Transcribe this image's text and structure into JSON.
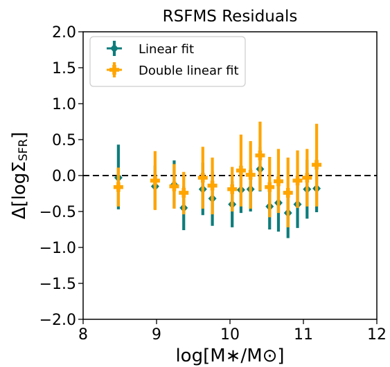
{
  "chart_data": {
    "type": "scatter",
    "title": "RSFMS Residuals",
    "xlabel": "log[M∗/M⊙]",
    "ylabel": "Δ[logΣSFR]",
    "xlim": [
      8,
      12
    ],
    "ylim": [
      -2.0,
      2.0
    ],
    "xticks": [
      "8",
      "9",
      "10",
      "11",
      "12"
    ],
    "yticks": [
      "2.0",
      "1.5",
      "1.0",
      "0.5",
      "0.0",
      "−0.5",
      "−1.0",
      "−1.5",
      "−2.0"
    ],
    "reference_line": {
      "y": 0.0,
      "style": "dashed",
      "color": "#000000"
    },
    "legend_position": "upper-left",
    "grid": false,
    "series": [
      {
        "name": "Linear fit",
        "color": "#0e7c7b",
        "marker": "diamond",
        "points": [
          {
            "x": 8.48,
            "y": -0.03,
            "lo": -0.47,
            "hi": 0.43
          },
          {
            "x": 8.98,
            "y": -0.15,
            "lo": -0.47,
            "hi": 0.14
          },
          {
            "x": 9.24,
            "y": -0.13,
            "lo": -0.45,
            "hi": 0.21
          },
          {
            "x": 9.37,
            "y": -0.45,
            "lo": -0.76,
            "hi": -0.15
          },
          {
            "x": 9.63,
            "y": -0.19,
            "lo": -0.55,
            "hi": 0.18
          },
          {
            "x": 9.76,
            "y": -0.32,
            "lo": -0.7,
            "hi": 0.06
          },
          {
            "x": 10.03,
            "y": -0.4,
            "lo": -0.72,
            "hi": -0.08
          },
          {
            "x": 10.15,
            "y": -0.2,
            "lo": -0.52,
            "hi": 0.12
          },
          {
            "x": 10.28,
            "y": -0.19,
            "lo": -0.5,
            "hi": 0.1
          },
          {
            "x": 10.41,
            "y": 0.09,
            "lo": -0.22,
            "hi": 0.4
          },
          {
            "x": 10.54,
            "y": -0.43,
            "lo": -0.75,
            "hi": -0.12
          },
          {
            "x": 10.66,
            "y": -0.38,
            "lo": -0.78,
            "hi": 0.02
          },
          {
            "x": 10.79,
            "y": -0.52,
            "lo": -0.87,
            "hi": -0.18
          },
          {
            "x": 10.92,
            "y": -0.4,
            "lo": -0.73,
            "hi": -0.06
          },
          {
            "x": 11.05,
            "y": -0.19,
            "lo": -0.6,
            "hi": 0.22
          },
          {
            "x": 11.18,
            "y": -0.18,
            "lo": -0.51,
            "hi": 0.15
          }
        ]
      },
      {
        "name": "Double linear fit",
        "color": "#ffa500",
        "marker": "plus",
        "points": [
          {
            "x": 8.48,
            "y": -0.16,
            "lo": -0.43,
            "hi": 0.11
          },
          {
            "x": 8.98,
            "y": -0.07,
            "lo": -0.48,
            "hi": 0.34
          },
          {
            "x": 9.24,
            "y": -0.15,
            "lo": -0.46,
            "hi": 0.16
          },
          {
            "x": 9.37,
            "y": -0.24,
            "lo": -0.54,
            "hi": 0.05
          },
          {
            "x": 9.63,
            "y": -0.03,
            "lo": -0.46,
            "hi": 0.4
          },
          {
            "x": 9.76,
            "y": -0.14,
            "lo": -0.54,
            "hi": 0.25
          },
          {
            "x": 10.03,
            "y": -0.19,
            "lo": -0.5,
            "hi": 0.12
          },
          {
            "x": 10.15,
            "y": 0.07,
            "lo": -0.43,
            "hi": 0.57
          },
          {
            "x": 10.28,
            "y": 0.01,
            "lo": -0.46,
            "hi": 0.48
          },
          {
            "x": 10.41,
            "y": 0.28,
            "lo": -0.21,
            "hi": 0.75
          },
          {
            "x": 10.54,
            "y": -0.16,
            "lo": -0.58,
            "hi": 0.26
          },
          {
            "x": 10.66,
            "y": -0.08,
            "lo": -0.52,
            "hi": 0.37
          },
          {
            "x": 10.79,
            "y": -0.24,
            "lo": -0.72,
            "hi": 0.25
          },
          {
            "x": 10.92,
            "y": -0.07,
            "lo": -0.45,
            "hi": 0.35
          },
          {
            "x": 11.05,
            "y": -0.03,
            "lo": -0.43,
            "hi": 0.37
          },
          {
            "x": 11.18,
            "y": 0.15,
            "lo": -0.43,
            "hi": 0.72
          }
        ]
      }
    ]
  }
}
